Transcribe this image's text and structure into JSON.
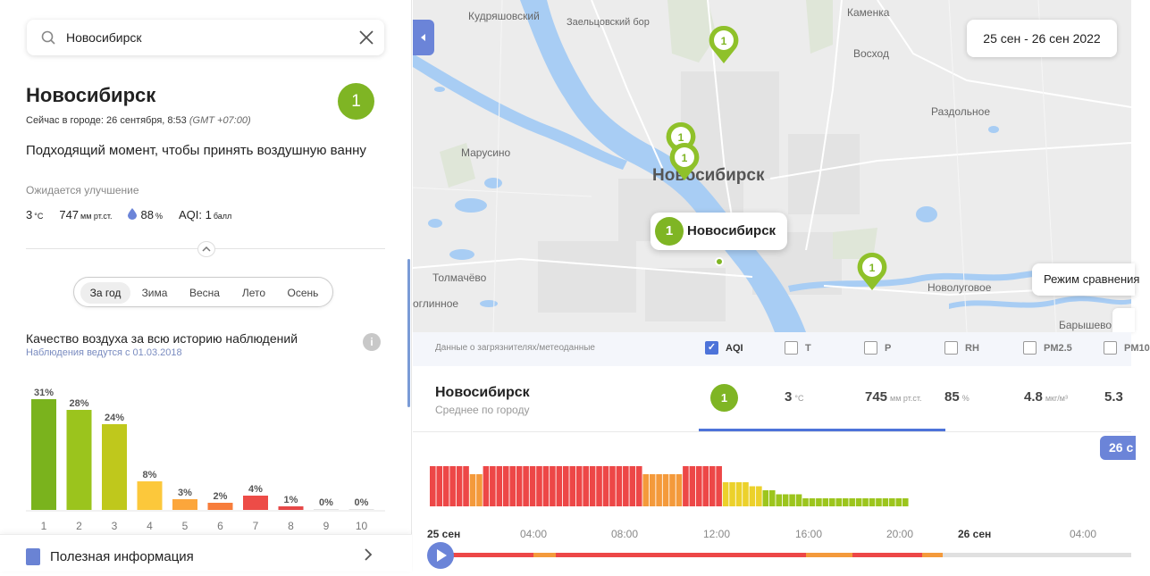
{
  "search": {
    "value": "Новосибирск"
  },
  "city": {
    "name": "Новосибирск",
    "aqi_badge": "1",
    "now_prefix": "Сейчас в городе: 26 сентября, 8:53 ",
    "now_tz": "(GMT +07:00)",
    "message": "Подходящий момент, чтобы принять воздушную ванну",
    "expect": "Ожидается улучшение",
    "metrics": {
      "temp": "3",
      "temp_unit": "°C",
      "pressure": "747",
      "pressure_unit": "мм рт.ст.",
      "humidity": "88",
      "humidity_unit": "%",
      "aqi": "AQI: 1",
      "aqi_unit": "балл"
    }
  },
  "seasons": {
    "items": [
      "За год",
      "Зима",
      "Весна",
      "Лето",
      "Осень"
    ],
    "active": 0
  },
  "history": {
    "title": "Качество воздуха за всю историю наблюдений",
    "subtitle": "Наблюдения ведутся с 01.03.2018"
  },
  "chart_data": [
    {
      "type": "bar",
      "categories": [
        "1",
        "2",
        "3",
        "4",
        "5",
        "6",
        "7",
        "8",
        "9",
        "10"
      ],
      "values": [
        31,
        28,
        24,
        8,
        3,
        2,
        4,
        1,
        0,
        0
      ],
      "labels": [
        "31%",
        "28%",
        "24%",
        "8%",
        "3%",
        "2%",
        "4%",
        "1%",
        "0%",
        "0%"
      ],
      "colors": [
        "#7ab31d",
        "#9bc41d",
        "#bfc81c",
        "#fcc83b",
        "#fca63b",
        "#f77d3b",
        "#ed4c47",
        "#e64848",
        "#e64848",
        "#e64848"
      ],
      "ylim": [
        0,
        31
      ]
    },
    {
      "type": "bar",
      "title": "",
      "x_labels": [
        "25 сен",
        "04:00",
        "08:00",
        "12:00",
        "16:00",
        "20:00",
        "26 сен",
        "04:00"
      ],
      "values": [
        10,
        10,
        10,
        10,
        10,
        10,
        8,
        8,
        10,
        10,
        10,
        10,
        10,
        10,
        10,
        10,
        10,
        10,
        10,
        10,
        10,
        10,
        10,
        10,
        10,
        10,
        10,
        10,
        10,
        10,
        10,
        10,
        8,
        8,
        8,
        8,
        8,
        8,
        10,
        10,
        10,
        10,
        10,
        10,
        6,
        6,
        6,
        6,
        5,
        5,
        4,
        4,
        3,
        3,
        3,
        3,
        2,
        2,
        2,
        2,
        2,
        2,
        2,
        2,
        2,
        2,
        2,
        2,
        2,
        2,
        2,
        2
      ],
      "levels": [
        "r",
        "r",
        "r",
        "r",
        "r",
        "r",
        "o",
        "o",
        "r",
        "r",
        "r",
        "r",
        "r",
        "r",
        "r",
        "r",
        "r",
        "r",
        "r",
        "r",
        "r",
        "r",
        "r",
        "r",
        "r",
        "r",
        "r",
        "r",
        "r",
        "r",
        "r",
        "r",
        "o",
        "o",
        "o",
        "o",
        "o",
        "o",
        "r",
        "r",
        "r",
        "r",
        "r",
        "r",
        "y",
        "y",
        "y",
        "y",
        "y",
        "y",
        "g",
        "g",
        "g",
        "g",
        "g",
        "g",
        "g",
        "g",
        "g",
        "g",
        "g",
        "g",
        "g",
        "g",
        "g",
        "g",
        "g",
        "g",
        "g",
        "g",
        "g",
        "g"
      ],
      "ylim": [
        0,
        10
      ]
    }
  ],
  "useful": {
    "label": "Полезная информация"
  },
  "map": {
    "date_range": "25 сен - 26 сен 2022",
    "compare_mode": "Режим сравнения",
    "popup": {
      "badge": "1",
      "name": "Новосибирск"
    },
    "pin_value": "1",
    "labels": {
      "kudryashovsky": "Кудряшовский",
      "zaeltsovsky": "Заельцовский бор",
      "kamenka": "Каменка",
      "voskhod": "Восход",
      "razdolnoe": "Раздольное",
      "marusino": "Марусино",
      "novosibirsk": "Новосибирск",
      "tolmachevo": "Толмачёво",
      "ogl": "оглинное",
      "novolugovoe": "Новолуговое",
      "baryshevo": "Барышево"
    }
  },
  "filters": {
    "title": "Данные о загрязнителях/метеоданные",
    "items": [
      {
        "label": "AQI",
        "on": true
      },
      {
        "label": "T",
        "on": false
      },
      {
        "label": "P",
        "on": false
      },
      {
        "label": "RH",
        "on": false
      },
      {
        "label": "PM2.5",
        "on": false
      },
      {
        "label": "PM10",
        "on": false
      }
    ]
  },
  "row": {
    "name": "Новосибирск",
    "sub": "Среднее по городу",
    "badge": "1",
    "temp": "3",
    "temp_unit": "°C",
    "pressure": "745",
    "pressure_unit": "мм рт.ст.",
    "rh": "85",
    "rh_unit": "%",
    "pm25": "4.8",
    "pm25_unit": "мкг/м³",
    "pm10": "5.3"
  },
  "timeline": {
    "badge": "26 с"
  },
  "colors": {
    "good": "#7fb524",
    "accent": "#4d73d9",
    "red": "#ed4747",
    "orange": "#f49a3b",
    "yellow": "#ecd12b",
    "green": "#9cc51d"
  }
}
